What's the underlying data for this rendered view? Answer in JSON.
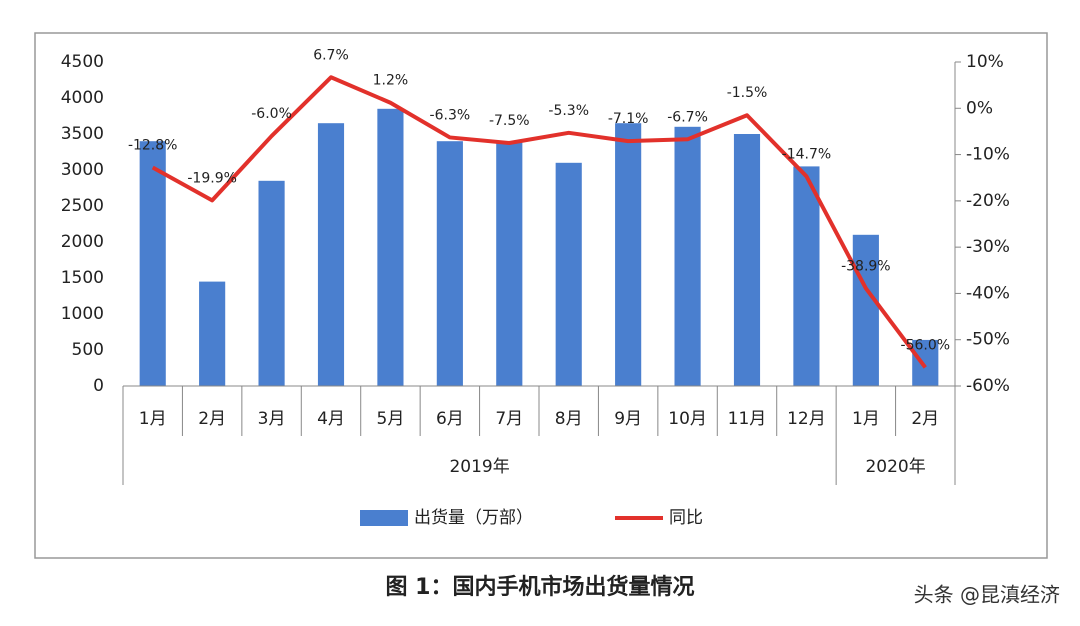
{
  "chart_data": {
    "type": "bar",
    "title": "图 1：国内手机市场出货量情况",
    "credit": "头条 @昆滇经济",
    "categories": [
      "1月",
      "2月",
      "3月",
      "4月",
      "5月",
      "6月",
      "7月",
      "8月",
      "9月",
      "10月",
      "11月",
      "12月",
      "1月",
      "2月"
    ],
    "groups": [
      {
        "name": "2019年",
        "count": 12
      },
      {
        "name": "2020年",
        "count": 2
      }
    ],
    "series": [
      {
        "name": "出货量（万部）",
        "type": "bar",
        "color": "#4a7fcf",
        "values": [
          3400,
          1450,
          2850,
          3650,
          3850,
          3400,
          3400,
          3100,
          3650,
          3600,
          3500,
          3050,
          2100,
          640
        ]
      },
      {
        "name": "同比",
        "type": "line",
        "axis": "y2",
        "color": "#e2312b",
        "values": [
          -12.8,
          -19.9,
          -6.0,
          6.7,
          1.2,
          -6.3,
          -7.5,
          -5.3,
          -7.1,
          -6.7,
          -1.5,
          -14.7,
          -38.9,
          -56.0
        ],
        "value_labels": [
          "-12.8%",
          "-19.9%",
          "-6.0%",
          "6.7%",
          "1.2%",
          "-6.3%",
          "-7.5%",
          "-5.3%",
          "-7.1%",
          "-6.7%",
          "-1.5%",
          "-14.7%",
          "-38.9%",
          "-56.0%"
        ]
      }
    ],
    "ylim": [
      0,
      4500
    ],
    "yticks": [
      0,
      500,
      1000,
      1500,
      2000,
      2500,
      3000,
      3500,
      4000,
      4500
    ],
    "y2lim": [
      -60,
      10
    ],
    "y2ticks": [
      {
        "value": 10,
        "label": "10%"
      },
      {
        "value": 0,
        "label": "0%"
      },
      {
        "value": -10,
        "label": "-10%"
      },
      {
        "value": -20,
        "label": "-20%"
      },
      {
        "value": -30,
        "label": "-30%"
      },
      {
        "value": -40,
        "label": "-40%"
      },
      {
        "value": -50,
        "label": "-50%"
      },
      {
        "value": -60,
        "label": "-60%"
      }
    ],
    "legend": "bottom",
    "grid": false
  }
}
